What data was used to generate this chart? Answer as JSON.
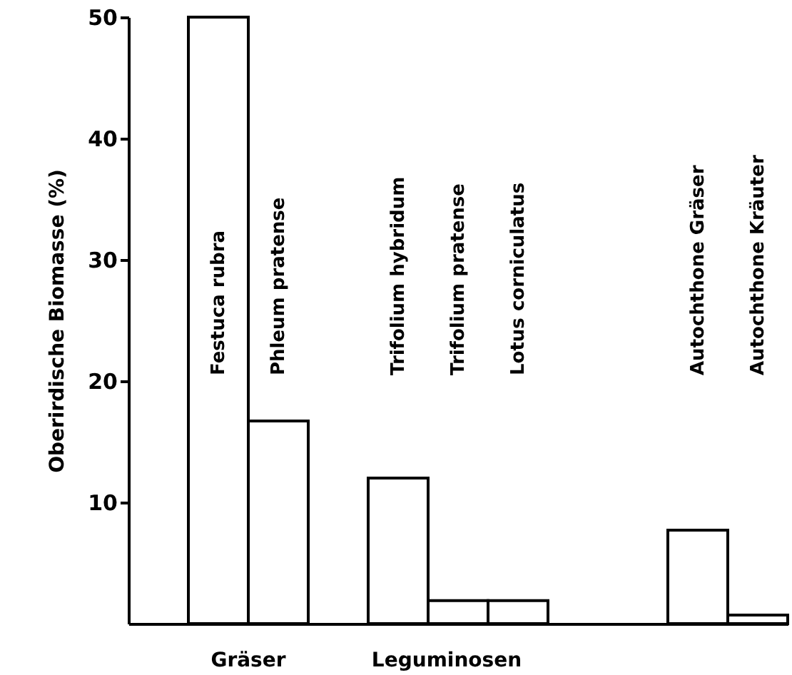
{
  "chart_data": {
    "type": "bar",
    "ylabel": "Oberirdische Biomasse (%)",
    "categories": [
      null,
      "Festuca rubra",
      "Phleum pratense",
      null,
      "Trifolium hybridum",
      "Trifolium pratense",
      "Lotus corniculatus",
      null,
      null,
      "Autochthone Gräser",
      "Autochthone Kräuter"
    ],
    "values": [
      null,
      50,
      16.7,
      null,
      12,
      1.9,
      1.9,
      null,
      null,
      7.7,
      0.7
    ],
    "color": "#ffffff",
    "ylim": [
      0,
      50
    ],
    "yticks": [
      10,
      20,
      30,
      40,
      50
    ],
    "annotations": [
      "Gräser",
      "Leguminosen"
    ],
    "grid": false
  }
}
